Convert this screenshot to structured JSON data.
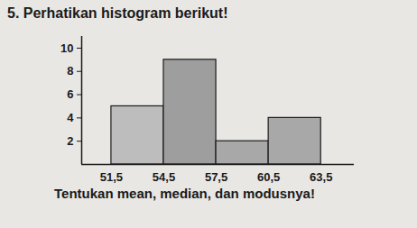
{
  "chart_data": {
    "type": "histogram",
    "title": "5. Perhatikan histogram berikut!",
    "annotations": [
      "Tentukan mean, median, dan modusnya!"
    ],
    "bins": [
      51.5,
      54.5,
      57.5,
      60.5,
      63.5
    ],
    "values": [
      5,
      9,
      2,
      4
    ],
    "colors": [
      "#bdbdbd",
      "#9e9e9e",
      "#a8a8a8",
      "#a8a8a8"
    ],
    "xlim": [
      49.8,
      65.4
    ],
    "xticks": [
      {
        "value": 51.5,
        "label": "51,5"
      },
      {
        "value": 54.5,
        "label": "54,5"
      },
      {
        "value": 57.5,
        "label": "57,5"
      },
      {
        "value": 60.5,
        "label": "60,5"
      },
      {
        "value": 63.5,
        "label": "63,5"
      }
    ],
    "ylim": [
      0,
      11
    ],
    "yticks": [
      2,
      4,
      6,
      8,
      10
    ],
    "grid": false
  }
}
